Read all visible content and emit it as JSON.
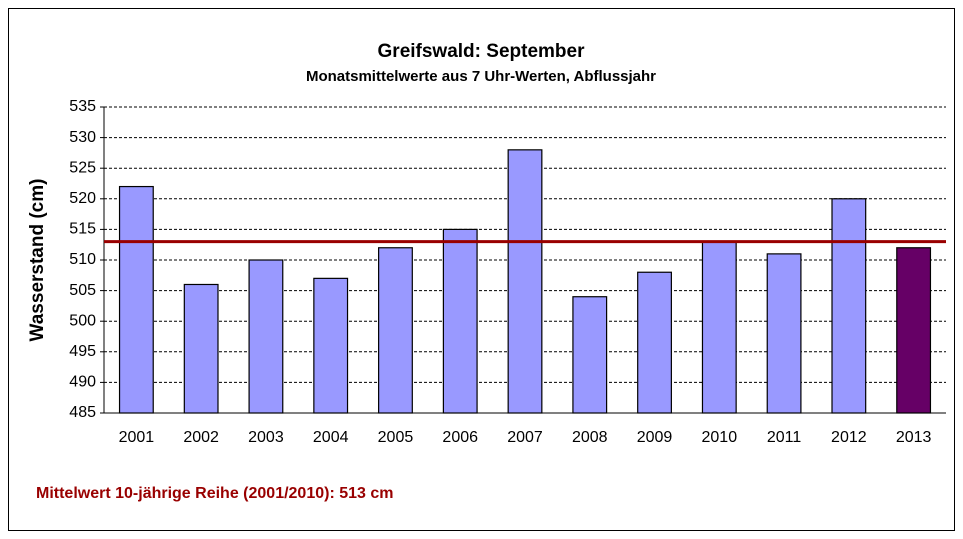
{
  "chart_data": {
    "type": "bar",
    "title": "Greifswald: September",
    "subtitle": "Monatsmittelwerte aus 7 Uhr-Werten, Abflussjahr",
    "y_label": "Wasserstand (cm)",
    "annotation": "Mittelwert 10-jährige Reihe (2001/2010): 513 cm",
    "categories": [
      "2001",
      "2002",
      "2003",
      "2004",
      "2005",
      "2006",
      "2007",
      "2008",
      "2009",
      "2010",
      "2011",
      "2012",
      "2013"
    ],
    "values": [
      522,
      506,
      510,
      507,
      512,
      515,
      528,
      504,
      508,
      513,
      511,
      520,
      512
    ],
    "colors": [
      "#9999ff",
      "#9999ff",
      "#9999ff",
      "#9999ff",
      "#9999ff",
      "#9999ff",
      "#9999ff",
      "#9999ff",
      "#9999ff",
      "#9999ff",
      "#9999ff",
      "#9999ff",
      "#660066"
    ],
    "mean": 513,
    "mean_color": "#990000",
    "ylim": [
      485,
      535
    ],
    "yticks": [
      485,
      490,
      495,
      500,
      505,
      510,
      515,
      520,
      525,
      530,
      535
    ],
    "grid": true
  }
}
